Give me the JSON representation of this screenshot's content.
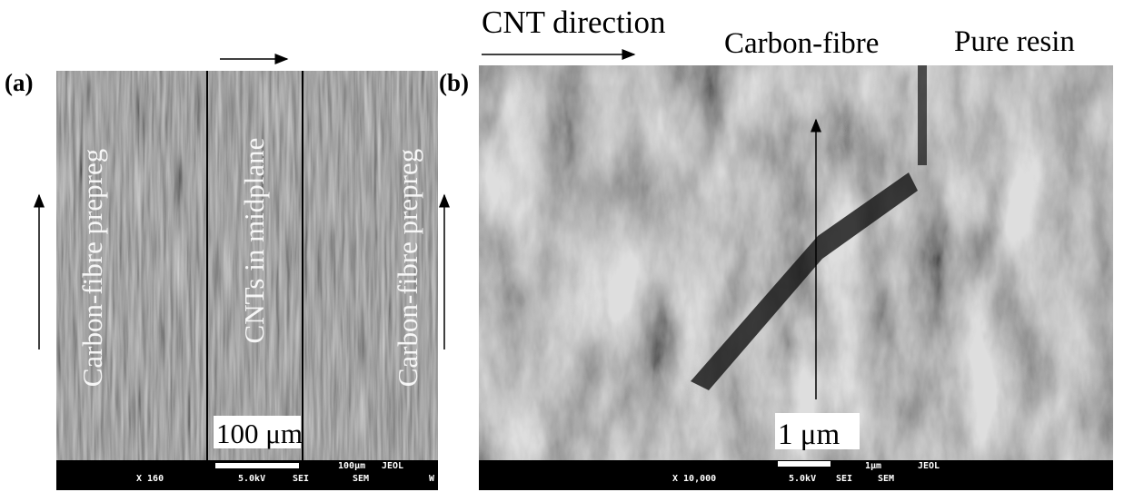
{
  "panel_a": {
    "label": "(a)",
    "annotations": [
      "Carbon-fibre prepreg",
      "CNTs in midplane",
      "Carbon-fibre prepreg"
    ],
    "scale_label": "100 μm",
    "info_bar": {
      "magnification": "X 160",
      "voltage": "5.0kV",
      "detector": "SEI",
      "scale": "100μm",
      "maker": "JEOL",
      "mode": "SEM",
      "work": "W"
    }
  },
  "panel_b": {
    "label": "(b)",
    "annotations": [
      "CNT direction",
      "Carbon-fibre",
      "Pure resin"
    ],
    "scale_label": "1 μm",
    "info_bar": {
      "magnification": "X 10,000",
      "voltage": "5.0kV",
      "detector": "SEI",
      "scale": "1μm",
      "maker": "JEOL",
      "mode": "SEM"
    }
  }
}
